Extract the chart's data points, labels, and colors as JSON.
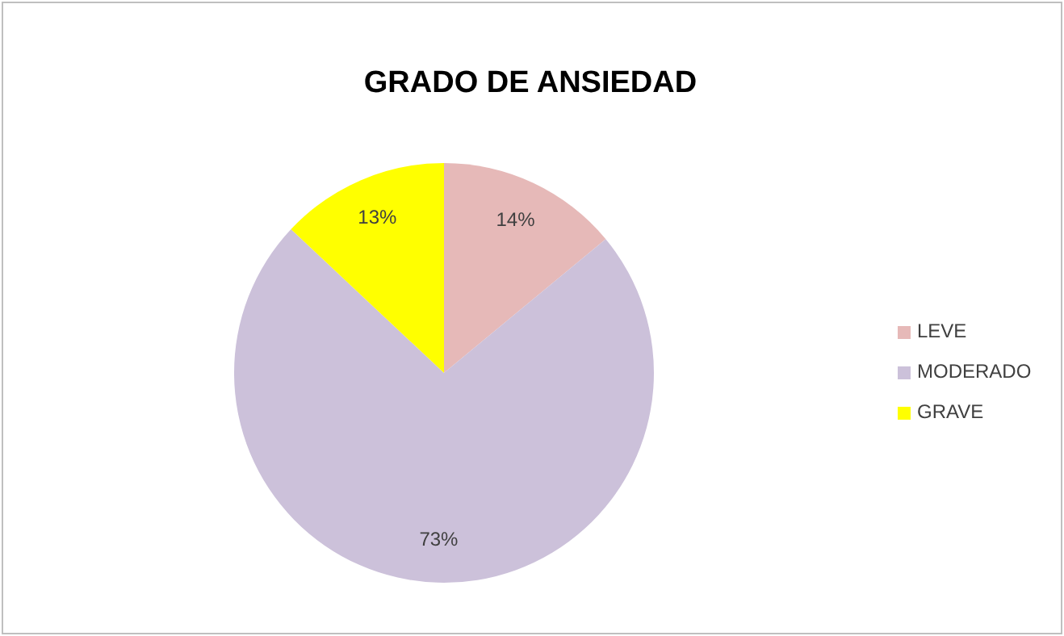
{
  "chart_data": {
    "type": "pie",
    "title": "GRADO DE ANSIEDAD",
    "categories": [
      "LEVE",
      "MODERADO",
      "GRAVE"
    ],
    "values": [
      14,
      73,
      13
    ],
    "colors": [
      "#e6b9b8",
      "#ccc1da",
      "#ffff00"
    ],
    "value_labels": [
      "14%",
      "73%",
      "13%"
    ],
    "legend": "right"
  }
}
